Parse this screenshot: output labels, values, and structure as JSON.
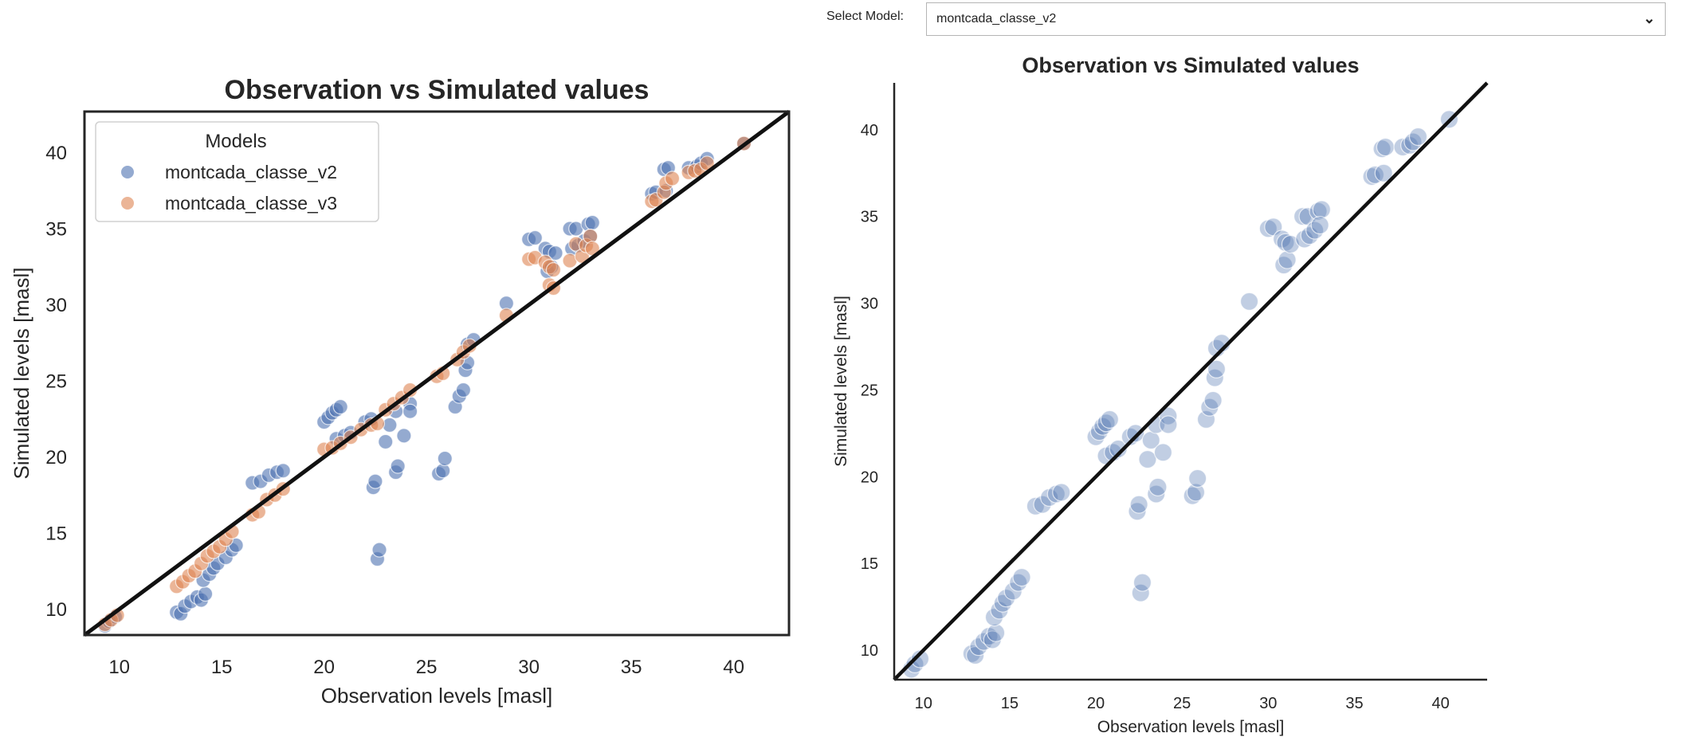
{
  "widget": {
    "select_label": "Select Model:",
    "selected_model": "montcada_classe_v2"
  },
  "colors": {
    "montcada_classe_v2": "#4c72b0",
    "montcada_classe_v3": "#dd8452",
    "identity_line": "#111111"
  },
  "chart_data": [
    {
      "type": "scatter",
      "title": "Observation vs Simulated values",
      "xlabel": "Observation levels [masl]",
      "ylabel": "Simulated levels [masl]",
      "xlim": [
        8.3,
        42.7
      ],
      "ylim": [
        8.3,
        42.7
      ],
      "xticks": [
        10,
        15,
        20,
        25,
        30,
        35,
        40
      ],
      "yticks": [
        10,
        15,
        20,
        25,
        30,
        35,
        40
      ],
      "grid": false,
      "legend": {
        "title": "Models",
        "placement": "top-left"
      },
      "reference_line": "y = x",
      "series": [
        {
          "name": "montcada_classe_v2",
          "color": "#4c72b0",
          "points": [
            [
              9.3,
              8.9
            ],
            [
              9.5,
              9.2
            ],
            [
              9.8,
              9.5
            ],
            [
              12.8,
              9.8
            ],
            [
              13.0,
              9.7
            ],
            [
              13.2,
              10.2
            ],
            [
              13.5,
              10.5
            ],
            [
              13.8,
              10.8
            ],
            [
              14.0,
              10.6
            ],
            [
              14.2,
              11.0
            ],
            [
              14.1,
              11.9
            ],
            [
              14.4,
              12.3
            ],
            [
              14.6,
              12.7
            ],
            [
              14.8,
              13.0
            ],
            [
              15.2,
              13.4
            ],
            [
              15.5,
              13.9
            ],
            [
              15.7,
              14.2
            ],
            [
              16.5,
              18.3
            ],
            [
              16.9,
              18.4
            ],
            [
              17.3,
              18.8
            ],
            [
              17.7,
              19.0
            ],
            [
              18.0,
              19.1
            ],
            [
              20.0,
              22.3
            ],
            [
              20.2,
              22.6
            ],
            [
              20.4,
              22.9
            ],
            [
              20.6,
              23.1
            ],
            [
              20.8,
              23.3
            ],
            [
              20.6,
              21.2
            ],
            [
              21.0,
              21.4
            ],
            [
              21.3,
              21.6
            ],
            [
              22.0,
              22.3
            ],
            [
              22.3,
              22.5
            ],
            [
              22.4,
              18.0
            ],
            [
              22.5,
              18.4
            ],
            [
              22.6,
              13.3
            ],
            [
              22.7,
              13.9
            ],
            [
              23.0,
              21.0
            ],
            [
              23.2,
              22.1
            ],
            [
              23.5,
              23.0
            ],
            [
              23.5,
              19.0
            ],
            [
              23.6,
              19.4
            ],
            [
              23.9,
              21.4
            ],
            [
              24.2,
              23.5
            ],
            [
              24.2,
              23.0
            ],
            [
              25.6,
              18.9
            ],
            [
              25.8,
              19.1
            ],
            [
              25.9,
              19.9
            ],
            [
              26.4,
              23.3
            ],
            [
              26.6,
              24.0
            ],
            [
              26.8,
              24.4
            ],
            [
              26.9,
              25.7
            ],
            [
              27.0,
              26.2
            ],
            [
              27.0,
              27.4
            ],
            [
              27.3,
              27.7
            ],
            [
              28.9,
              30.1
            ],
            [
              30.0,
              34.3
            ],
            [
              30.3,
              34.4
            ],
            [
              30.8,
              33.7
            ],
            [
              31.0,
              33.5
            ],
            [
              30.9,
              32.2
            ],
            [
              31.1,
              32.5
            ],
            [
              31.3,
              33.4
            ],
            [
              32.0,
              35.0
            ],
            [
              32.3,
              35.0
            ],
            [
              32.1,
              33.7
            ],
            [
              32.4,
              33.9
            ],
            [
              32.7,
              34.2
            ],
            [
              32.9,
              35.3
            ],
            [
              33.1,
              35.4
            ],
            [
              33.0,
              34.5
            ],
            [
              36.0,
              37.3
            ],
            [
              36.2,
              37.4
            ],
            [
              36.6,
              38.9
            ],
            [
              36.8,
              39.0
            ],
            [
              36.7,
              37.5
            ],
            [
              37.8,
              39.0
            ],
            [
              38.2,
              39.1
            ],
            [
              38.4,
              39.3
            ],
            [
              38.7,
              39.6
            ],
            [
              40.5,
              40.6
            ]
          ]
        },
        {
          "name": "montcada_classe_v3",
          "color": "#dd8452",
          "points": [
            [
              9.3,
              9.0
            ],
            [
              9.6,
              9.3
            ],
            [
              9.9,
              9.6
            ],
            [
              12.8,
              11.5
            ],
            [
              13.1,
              11.8
            ],
            [
              13.4,
              12.2
            ],
            [
              13.7,
              12.5
            ],
            [
              14.0,
              13.0
            ],
            [
              14.3,
              13.5
            ],
            [
              14.6,
              13.8
            ],
            [
              14.9,
              14.1
            ],
            [
              15.2,
              14.6
            ],
            [
              15.5,
              15.1
            ],
            [
              16.5,
              16.2
            ],
            [
              16.8,
              16.4
            ],
            [
              17.2,
              17.2
            ],
            [
              17.6,
              17.5
            ],
            [
              18.0,
              17.9
            ],
            [
              20.0,
              20.5
            ],
            [
              20.4,
              20.6
            ],
            [
              20.8,
              20.9
            ],
            [
              21.3,
              21.3
            ],
            [
              21.8,
              21.8
            ],
            [
              22.3,
              22.1
            ],
            [
              22.6,
              22.2
            ],
            [
              23.0,
              23.1
            ],
            [
              23.4,
              23.5
            ],
            [
              23.8,
              23.9
            ],
            [
              24.2,
              24.4
            ],
            [
              25.5,
              25.3
            ],
            [
              25.8,
              25.5
            ],
            [
              26.5,
              26.4
            ],
            [
              26.8,
              26.9
            ],
            [
              27.1,
              27.3
            ],
            [
              28.9,
              29.3
            ],
            [
              30.0,
              33.0
            ],
            [
              30.3,
              33.1
            ],
            [
              30.8,
              32.8
            ],
            [
              31.0,
              32.5
            ],
            [
              31.2,
              32.3
            ],
            [
              31.0,
              31.3
            ],
            [
              31.2,
              31.1
            ],
            [
              32.0,
              32.9
            ],
            [
              32.3,
              34.0
            ],
            [
              32.6,
              33.2
            ],
            [
              32.8,
              33.9
            ],
            [
              33.0,
              34.5
            ],
            [
              33.1,
              33.7
            ],
            [
              36.0,
              36.8
            ],
            [
              36.2,
              36.9
            ],
            [
              36.6,
              37.4
            ],
            [
              36.7,
              38.0
            ],
            [
              37.0,
              38.3
            ],
            [
              37.8,
              38.7
            ],
            [
              38.1,
              38.8
            ],
            [
              38.4,
              38.9
            ],
            [
              38.7,
              39.3
            ],
            [
              40.5,
              40.6
            ]
          ]
        }
      ]
    },
    {
      "type": "scatter",
      "title": "Observation vs Simulated values",
      "xlabel": "Observation levels [masl]",
      "ylabel": "Simulated levels [masl]",
      "xlim": [
        8.3,
        42.7
      ],
      "ylim": [
        8.3,
        42.7
      ],
      "xticks": [
        10,
        15,
        20,
        25,
        30,
        35,
        40
      ],
      "yticks": [
        10,
        15,
        20,
        25,
        30,
        35,
        40
      ],
      "grid": false,
      "reference_line": "y = x",
      "series_ref": "montcada_classe_v2"
    }
  ]
}
